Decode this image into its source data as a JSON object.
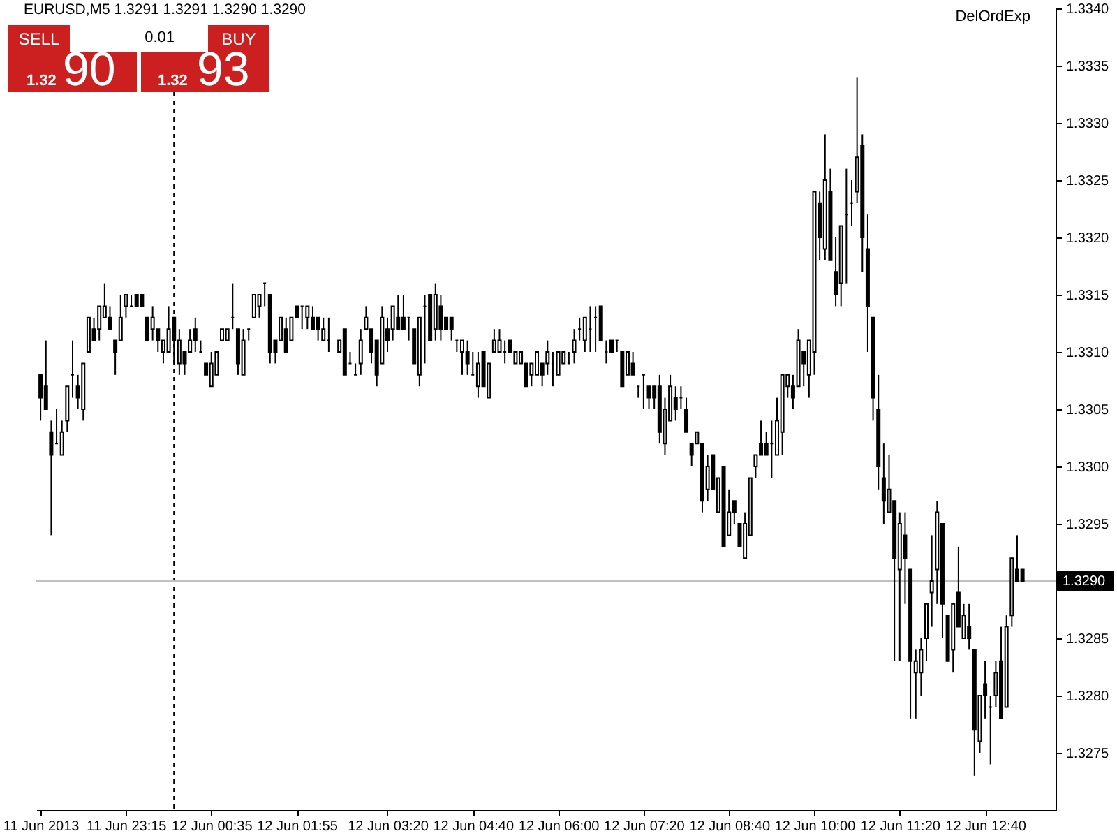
{
  "chart_data": {
    "type": "candlestick",
    "title": "EURUSD,M5  1.3291 1.3291 1.3290 1.3290",
    "color": "#000000",
    "x": [
      "2013-06-11T21:55",
      "2013-06-11T22:00",
      "2013-06-11T22:05",
      "2013-06-11T22:10",
      "2013-06-11T22:15",
      "2013-06-11T22:20",
      "2013-06-11T22:25",
      "2013-06-11T22:30",
      "2013-06-11T22:35",
      "2013-06-11T22:40",
      "2013-06-11T22:45",
      "2013-06-11T22:50",
      "2013-06-11T22:55",
      "2013-06-11T23:00",
      "2013-06-11T23:05",
      "2013-06-11T23:10",
      "2013-06-11T23:15",
      "2013-06-11T23:20",
      "2013-06-11T23:25",
      "2013-06-11T23:30",
      "2013-06-11T23:35",
      "2013-06-11T23:40",
      "2013-06-11T23:45",
      "2013-06-11T23:50",
      "2013-06-11T23:55",
      "2013-06-12T00:00",
      "2013-06-12T00:05",
      "2013-06-12T00:10",
      "2013-06-12T00:15",
      "2013-06-12T00:20",
      "2013-06-12T00:25",
      "2013-06-12T00:30",
      "2013-06-12T00:35",
      "2013-06-12T00:40",
      "2013-06-12T00:45",
      "2013-06-12T00:50",
      "2013-06-12T00:55",
      "2013-06-12T01:00",
      "2013-06-12T01:05",
      "2013-06-12T01:10",
      "2013-06-12T01:15",
      "2013-06-12T01:20",
      "2013-06-12T01:25",
      "2013-06-12T01:30",
      "2013-06-12T01:35",
      "2013-06-12T01:40",
      "2013-06-12T01:45",
      "2013-06-12T01:50",
      "2013-06-12T01:55",
      "2013-06-12T02:00",
      "2013-06-12T02:05",
      "2013-06-12T02:10",
      "2013-06-12T02:15",
      "2013-06-12T02:20",
      "2013-06-12T02:25",
      "2013-06-12T02:35",
      "2013-06-12T02:40",
      "2013-06-12T02:45",
      "2013-06-12T02:50",
      "2013-06-12T02:55",
      "2013-06-12T03:00",
      "2013-06-12T03:05",
      "2013-06-12T03:10",
      "2013-06-12T03:15",
      "2013-06-12T03:20",
      "2013-06-12T03:25",
      "2013-06-12T03:30",
      "2013-06-12T03:35",
      "2013-06-12T03:40",
      "2013-06-12T03:45",
      "2013-06-12T03:50",
      "2013-06-12T03:55",
      "2013-06-12T04:00",
      "2013-06-12T04:05",
      "2013-06-12T04:10",
      "2013-06-12T04:15",
      "2013-06-12T04:20",
      "2013-06-12T04:25",
      "2013-06-12T04:30",
      "2013-06-12T04:35",
      "2013-06-12T04:40",
      "2013-06-12T04:45",
      "2013-06-12T04:50",
      "2013-06-12T04:55",
      "2013-06-12T05:00",
      "2013-06-12T05:05",
      "2013-06-12T05:10",
      "2013-06-12T05:15",
      "2013-06-12T05:20",
      "2013-06-12T05:25",
      "2013-06-12T05:30",
      "2013-06-12T05:35",
      "2013-06-12T05:40",
      "2013-06-12T05:45",
      "2013-06-12T05:50",
      "2013-06-12T05:55",
      "2013-06-12T06:00",
      "2013-06-12T06:05",
      "2013-06-12T06:10",
      "2013-06-12T06:15",
      "2013-06-12T06:20",
      "2013-06-12T06:25",
      "2013-06-12T06:30",
      "2013-06-12T06:35",
      "2013-06-12T06:40",
      "2013-06-12T06:45",
      "2013-06-12T06:50",
      "2013-06-12T06:55",
      "2013-06-12T07:00",
      "2013-06-12T07:05",
      "2013-06-12T07:10",
      "2013-06-12T07:15",
      "2013-06-12T07:20",
      "2013-06-12T07:25",
      "2013-06-12T07:30",
      "2013-06-12T07:35",
      "2013-06-12T07:40",
      "2013-06-12T07:45",
      "2013-06-12T07:50",
      "2013-06-12T07:55",
      "2013-06-12T08:00",
      "2013-06-12T08:05",
      "2013-06-12T08:10",
      "2013-06-12T08:15",
      "2013-06-12T08:20",
      "2013-06-12T08:25",
      "2013-06-12T08:30",
      "2013-06-12T08:35",
      "2013-06-12T08:40",
      "2013-06-12T08:45",
      "2013-06-12T08:50",
      "2013-06-12T08:55",
      "2013-06-12T09:00",
      "2013-06-12T09:05",
      "2013-06-12T09:10",
      "2013-06-12T09:15",
      "2013-06-12T09:20",
      "2013-06-12T09:25",
      "2013-06-12T09:30",
      "2013-06-12T09:35",
      "2013-06-12T09:40",
      "2013-06-12T09:45",
      "2013-06-12T09:50",
      "2013-06-12T09:55",
      "2013-06-12T10:00",
      "2013-06-12T10:05",
      "2013-06-12T10:10",
      "2013-06-12T10:15",
      "2013-06-12T10:20",
      "2013-06-12T10:25",
      "2013-06-12T10:30",
      "2013-06-12T10:35",
      "2013-06-12T10:40",
      "2013-06-12T10:45",
      "2013-06-12T10:50",
      "2013-06-12T10:55",
      "2013-06-12T11:00",
      "2013-06-12T11:05",
      "2013-06-12T11:10",
      "2013-06-12T11:15",
      "2013-06-12T11:20",
      "2013-06-12T11:25",
      "2013-06-12T11:30",
      "2013-06-12T11:35",
      "2013-06-12T11:40",
      "2013-06-12T11:45",
      "2013-06-12T11:50",
      "2013-06-12T11:55",
      "2013-06-12T12:00",
      "2013-06-12T12:05",
      "2013-06-12T12:10",
      "2013-06-12T12:15",
      "2013-06-12T12:20",
      "2013-06-12T12:25",
      "2013-06-12T12:30",
      "2013-06-12T12:35",
      "2013-06-12T12:40",
      "2013-06-12T12:45",
      "2013-06-12T12:50",
      "2013-06-12T12:55",
      "2013-06-12T13:00",
      "2013-06-12T13:05",
      "2013-06-12T13:10",
      "2013-06-12T13:15"
    ],
    "ohlc": [
      [
        1.3308,
        1.3308,
        1.3304,
        1.3306
      ],
      [
        1.3307,
        1.3311,
        1.3305,
        1.3305
      ],
      [
        1.3303,
        1.3304,
        1.3294,
        1.3301
      ],
      [
        1.3302,
        1.3305,
        1.3302,
        1.3302
      ],
      [
        1.3301,
        1.3304,
        1.3301,
        1.3303
      ],
      [
        1.3304,
        1.3307,
        1.3303,
        1.3307
      ],
      [
        1.3308,
        1.3311,
        1.3306,
        1.3308
      ],
      [
        1.3307,
        1.3308,
        1.3305,
        1.3306
      ],
      [
        1.3305,
        1.3309,
        1.3304,
        1.3309
      ],
      [
        1.331,
        1.3313,
        1.331,
        1.3313
      ],
      [
        1.3312,
        1.3313,
        1.3311,
        1.3311
      ],
      [
        1.3312,
        1.3314,
        1.3311,
        1.3314
      ],
      [
        1.3313,
        1.3316,
        1.3313,
        1.3314
      ],
      [
        1.3313,
        1.3314,
        1.3312,
        1.3312
      ],
      [
        1.3311,
        1.3311,
        1.3308,
        1.331
      ],
      [
        1.3311,
        1.3315,
        1.3311,
        1.3313
      ],
      [
        1.3314,
        1.3315,
        1.3313,
        1.3315
      ],
      [
        1.3314,
        1.3315,
        1.3314,
        1.3314
      ],
      [
        1.3315,
        1.3315,
        1.3314,
        1.3314
      ],
      [
        1.3315,
        1.3315,
        1.3314,
        1.3314
      ],
      [
        1.3313,
        1.3313,
        1.3311,
        1.3311
      ],
      [
        1.3312,
        1.3314,
        1.3311,
        1.3313
      ],
      [
        1.3312,
        1.3312,
        1.331,
        1.3311
      ],
      [
        1.331,
        1.3311,
        1.3309,
        1.3311
      ],
      [
        1.331,
        1.3314,
        1.331,
        1.3312
      ],
      [
        1.3313,
        1.3313,
        1.3309,
        1.3311
      ],
      [
        1.3309,
        1.3312,
        1.3308,
        1.3311
      ],
      [
        1.331,
        1.331,
        1.3308,
        1.3309
      ],
      [
        1.331,
        1.3312,
        1.331,
        1.3311
      ],
      [
        1.3312,
        1.3313,
        1.331,
        1.3311
      ],
      [
        1.331,
        1.3311,
        1.331,
        1.331
      ],
      [
        1.3309,
        1.3309,
        1.3308,
        1.3308
      ],
      [
        1.3307,
        1.331,
        1.3307,
        1.3309
      ],
      [
        1.3308,
        1.331,
        1.3308,
        1.331
      ],
      [
        1.3311,
        1.3312,
        1.3311,
        1.3312
      ],
      [
        1.3311,
        1.3312,
        1.3311,
        1.3312
      ],
      [
        1.3313,
        1.3316,
        1.3312,
        1.3313
      ],
      [
        1.3312,
        1.3312,
        1.3308,
        1.3309
      ],
      [
        1.3308,
        1.3312,
        1.3308,
        1.3311
      ],
      [
        1.3312,
        1.3312,
        1.3311,
        1.3312
      ],
      [
        1.3313,
        1.3315,
        1.3313,
        1.3315
      ],
      [
        1.3314,
        1.3315,
        1.3313,
        1.3315
      ],
      [
        1.3316,
        1.3316,
        1.3314,
        1.3316
      ],
      [
        1.3315,
        1.3315,
        1.3309,
        1.331
      ],
      [
        1.3311,
        1.3311,
        1.3309,
        1.331
      ],
      [
        1.3311,
        1.3313,
        1.3311,
        1.3313
      ],
      [
        1.3312,
        1.3313,
        1.331,
        1.331
      ],
      [
        1.3311,
        1.3313,
        1.3311,
        1.3313
      ],
      [
        1.3314,
        1.3314,
        1.3313,
        1.3313
      ],
      [
        1.3314,
        1.3314,
        1.3312,
        1.3314
      ],
      [
        1.3313,
        1.3314,
        1.3312,
        1.3314
      ],
      [
        1.3313,
        1.3314,
        1.3312,
        1.3312
      ],
      [
        1.3313,
        1.3313,
        1.3311,
        1.3312
      ],
      [
        1.3311,
        1.3313,
        1.3311,
        1.3312
      ],
      [
        1.3311,
        1.3313,
        1.331,
        1.3311
      ],
      [
        1.331,
        1.3311,
        1.331,
        1.3311
      ],
      [
        1.3312,
        1.3312,
        1.3308,
        1.3308
      ],
      [
        1.3309,
        1.331,
        1.3309,
        1.3309
      ],
      [
        1.3308,
        1.3309,
        1.3308,
        1.3308
      ],
      [
        1.3309,
        1.3312,
        1.3308,
        1.3311
      ],
      [
        1.3312,
        1.3314,
        1.3312,
        1.3313
      ],
      [
        1.3312,
        1.3312,
        1.3309,
        1.331
      ],
      [
        1.3311,
        1.3311,
        1.3307,
        1.3308
      ],
      [
        1.3309,
        1.3314,
        1.3309,
        1.3313
      ],
      [
        1.3312,
        1.3313,
        1.331,
        1.3311
      ],
      [
        1.3312,
        1.3314,
        1.3311,
        1.3314
      ],
      [
        1.3313,
        1.3315,
        1.3312,
        1.3312
      ],
      [
        1.3313,
        1.3315,
        1.3312,
        1.3312
      ],
      [
        1.3313,
        1.3313,
        1.3311,
        1.3313
      ],
      [
        1.3312,
        1.3312,
        1.3309,
        1.3309
      ],
      [
        1.3308,
        1.3313,
        1.3307,
        1.3313
      ],
      [
        1.3314,
        1.3315,
        1.3309,
        1.3314
      ],
      [
        1.3315,
        1.3315,
        1.3311,
        1.3311
      ],
      [
        1.3312,
        1.3316,
        1.3311,
        1.3315
      ],
      [
        1.3314,
        1.3315,
        1.3311,
        1.3312
      ],
      [
        1.3313,
        1.3313,
        1.3312,
        1.3312
      ],
      [
        1.3313,
        1.3313,
        1.3311,
        1.3312
      ],
      [
        1.3311,
        1.3311,
        1.331,
        1.3311
      ],
      [
        1.331,
        1.3311,
        1.3308,
        1.3311
      ],
      [
        1.331,
        1.3311,
        1.3308,
        1.3309
      ],
      [
        1.3308,
        1.331,
        1.3308,
        1.3308
      ],
      [
        1.3307,
        1.331,
        1.3306,
        1.3309
      ],
      [
        1.331,
        1.331,
        1.3307,
        1.3307
      ],
      [
        1.3306,
        1.3309,
        1.3306,
        1.3309
      ],
      [
        1.331,
        1.3312,
        1.331,
        1.3311
      ],
      [
        1.331,
        1.3312,
        1.331,
        1.3311
      ],
      [
        1.331,
        1.3311,
        1.3309,
        1.331
      ],
      [
        1.3311,
        1.3311,
        1.331,
        1.331
      ],
      [
        1.3309,
        1.331,
        1.3309,
        1.331
      ],
      [
        1.3309,
        1.331,
        1.3309,
        1.331
      ],
      [
        1.3309,
        1.3309,
        1.3307,
        1.3307
      ],
      [
        1.3308,
        1.3309,
        1.3307,
        1.3309
      ],
      [
        1.3308,
        1.331,
        1.3308,
        1.331
      ],
      [
        1.3309,
        1.3309,
        1.3307,
        1.3308
      ],
      [
        1.3309,
        1.3311,
        1.3308,
        1.331
      ],
      [
        1.3309,
        1.331,
        1.3307,
        1.3309
      ],
      [
        1.3308,
        1.331,
        1.3308,
        1.331
      ],
      [
        1.3309,
        1.331,
        1.3309,
        1.331
      ],
      [
        1.3309,
        1.331,
        1.3309,
        1.3309
      ],
      [
        1.331,
        1.3312,
        1.3309,
        1.3311
      ],
      [
        1.3312,
        1.3313,
        1.3311,
        1.3312
      ],
      [
        1.3311,
        1.3313,
        1.331,
        1.3313
      ],
      [
        1.3312,
        1.3314,
        1.331,
        1.3312
      ],
      [
        1.3313,
        1.3314,
        1.331,
        1.3313
      ],
      [
        1.3314,
        1.3314,
        1.3311,
        1.3311
      ],
      [
        1.331,
        1.3311,
        1.3309,
        1.331
      ],
      [
        1.3311,
        1.3311,
        1.331,
        1.331
      ],
      [
        1.3311,
        1.3311,
        1.331,
        1.3311
      ],
      [
        1.331,
        1.331,
        1.3307,
        1.3307
      ],
      [
        1.3308,
        1.331,
        1.3308,
        1.331
      ],
      [
        1.3309,
        1.331,
        1.3308,
        1.3308
      ],
      [
        1.3307,
        1.3307,
        1.3306,
        1.3307
      ],
      [
        1.3308,
        1.3308,
        1.3305,
        1.3308
      ],
      [
        1.3307,
        1.3307,
        1.3305,
        1.3306
      ],
      [
        1.3307,
        1.3307,
        1.3305,
        1.3306
      ],
      [
        1.3307,
        1.3308,
        1.3302,
        1.3303
      ],
      [
        1.3302,
        1.3306,
        1.3301,
        1.3305
      ],
      [
        1.3304,
        1.3308,
        1.3304,
        1.3307
      ],
      [
        1.3306,
        1.3307,
        1.3304,
        1.3305
      ],
      [
        1.3306,
        1.3307,
        1.3305,
        1.3306
      ],
      [
        1.3305,
        1.3306,
        1.3303,
        1.3303
      ],
      [
        1.3302,
        1.3302,
        1.33,
        1.3301
      ],
      [
        1.3302,
        1.3303,
        1.3302,
        1.3303
      ],
      [
        1.3302,
        1.3302,
        1.3296,
        1.3297
      ],
      [
        1.3298,
        1.3301,
        1.3297,
        1.33
      ],
      [
        1.3301,
        1.3301,
        1.3298,
        1.3298
      ],
      [
        1.3296,
        1.3299,
        1.3296,
        1.3299
      ],
      [
        1.33,
        1.33,
        1.3293,
        1.3293
      ],
      [
        1.3294,
        1.3298,
        1.3294,
        1.3296
      ],
      [
        1.3297,
        1.3297,
        1.3295,
        1.3296
      ],
      [
        1.3295,
        1.3295,
        1.3293,
        1.3293
      ],
      [
        1.3292,
        1.3296,
        1.3292,
        1.3295
      ],
      [
        1.3294,
        1.3299,
        1.3294,
        1.3299
      ],
      [
        1.33,
        1.3301,
        1.3299,
        1.3301
      ],
      [
        1.3302,
        1.3304,
        1.3301,
        1.3301
      ],
      [
        1.3302,
        1.3303,
        1.3301,
        1.3301
      ],
      [
        1.3302,
        1.3304,
        1.3299,
        1.3302
      ],
      [
        1.3301,
        1.3306,
        1.3301,
        1.3304
      ],
      [
        1.3303,
        1.3308,
        1.3301,
        1.3308
      ],
      [
        1.3307,
        1.3308,
        1.3306,
        1.3308
      ],
      [
        1.3307,
        1.3308,
        1.3305,
        1.3306
      ],
      [
        1.3307,
        1.3312,
        1.3307,
        1.3311
      ],
      [
        1.331,
        1.331,
        1.3307,
        1.3309
      ],
      [
        1.3308,
        1.3311,
        1.3306,
        1.3311
      ],
      [
        1.331,
        1.3324,
        1.3308,
        1.3324
      ],
      [
        1.3323,
        1.3324,
        1.3318,
        1.332
      ],
      [
        1.3319,
        1.3329,
        1.3318,
        1.3325
      ],
      [
        1.3324,
        1.3326,
        1.3318,
        1.3318
      ],
      [
        1.3317,
        1.332,
        1.3314,
        1.3315
      ],
      [
        1.3316,
        1.3321,
        1.3314,
        1.3321
      ],
      [
        1.3322,
        1.3326,
        1.3316,
        1.3322
      ],
      [
        1.3323,
        1.3325,
        1.3321,
        1.3323
      ],
      [
        1.3324,
        1.3334,
        1.3323,
        1.3327
      ],
      [
        1.3328,
        1.3329,
        1.3317,
        1.332
      ],
      [
        1.3319,
        1.3322,
        1.331,
        1.3314
      ],
      [
        1.3313,
        1.3313,
        1.3304,
        1.3306
      ],
      [
        1.3305,
        1.3308,
        1.3298,
        1.33
      ],
      [
        1.3299,
        1.3302,
        1.3295,
        1.3297
      ],
      [
        1.3296,
        1.3301,
        1.3296,
        1.3298
      ],
      [
        1.3297,
        1.3297,
        1.3283,
        1.3292
      ],
      [
        1.3291,
        1.3296,
        1.3283,
        1.3295
      ],
      [
        1.3294,
        1.3296,
        1.3288,
        1.3292
      ],
      [
        1.3291,
        1.3291,
        1.3278,
        1.3283
      ],
      [
        1.3282,
        1.3284,
        1.3278,
        1.3283
      ],
      [
        1.3282,
        1.3285,
        1.328,
        1.3284
      ],
      [
        1.3285,
        1.3288,
        1.3283,
        1.3288
      ],
      [
        1.3289,
        1.3294,
        1.3286,
        1.329
      ],
      [
        1.3291,
        1.3297,
        1.3288,
        1.3296
      ],
      [
        1.3295,
        1.3295,
        1.3285,
        1.3288
      ],
      [
        1.3287,
        1.3287,
        1.3283,
        1.3283
      ],
      [
        1.3284,
        1.3288,
        1.3282,
        1.3288
      ],
      [
        1.3289,
        1.3293,
        1.3286,
        1.3286
      ],
      [
        1.3285,
        1.3288,
        1.3285,
        1.3287
      ],
      [
        1.3286,
        1.3288,
        1.3284,
        1.3285
      ],
      [
        1.3284,
        1.3284,
        1.3273,
        1.3277
      ],
      [
        1.3276,
        1.328,
        1.3275,
        1.328
      ],
      [
        1.3281,
        1.3283,
        1.3278,
        1.328
      ],
      [
        1.3279,
        1.328,
        1.3274,
        1.3279
      ],
      [
        1.328,
        1.3283,
        1.3279,
        1.3282
      ],
      [
        1.3283,
        1.3286,
        1.3278,
        1.3278
      ],
      [
        1.3279,
        1.3287,
        1.3279,
        1.3286
      ],
      [
        1.3287,
        1.3292,
        1.3286,
        1.3292
      ],
      [
        1.3291,
        1.3294,
        1.329,
        1.329
      ],
      [
        1.3291,
        1.3291,
        1.329,
        1.329
      ]
    ],
    "xlim": [
      "2013-06-11T21:51",
      "2013-06-12T13:46"
    ],
    "xticks": [
      {
        "value": "2013-06-11T21:55",
        "label": "11 Jun 2013"
      },
      {
        "value": "2013-06-11T23:15",
        "label": "11 Jun 23:15"
      },
      {
        "value": "2013-06-12T00:35",
        "label": "12 Jun 00:35"
      },
      {
        "value": "2013-06-12T01:55",
        "label": "12 Jun 01:55"
      },
      {
        "value": "2013-06-12T03:20",
        "label": "12 Jun 03:20"
      },
      {
        "value": "2013-06-12T04:40",
        "label": "12 Jun 04:40"
      },
      {
        "value": "2013-06-12T06:00",
        "label": "12 Jun 06:00"
      },
      {
        "value": "2013-06-12T07:20",
        "label": "12 Jun 07:20"
      },
      {
        "value": "2013-06-12T08:40",
        "label": "12 Jun 08:40"
      },
      {
        "value": "2013-06-12T10:00",
        "label": "12 Jun 10:00"
      },
      {
        "value": "2013-06-12T11:20",
        "label": "12 Jun 11:20"
      },
      {
        "value": "2013-06-12T12:40",
        "label": "12 Jun 12:40"
      }
    ],
    "ylim": [
      1.327,
      1.334
    ],
    "yticks": [
      1.3275,
      {
        "value": 1.328,
        "label": "1.3280"
      },
      1.3285,
      1.3295,
      {
        "value": 1.33,
        "label": "1.3300"
      },
      1.3305,
      {
        "value": 1.331,
        "label": "1.3310"
      },
      1.3315,
      {
        "value": 1.332,
        "label": "1.3320"
      },
      1.3325,
      {
        "value": 1.333,
        "label": "1.3330"
      },
      1.3335,
      {
        "value": 1.334,
        "label": "1.3340"
      }
    ],
    "ref_lines": [
      {
        "axis": "x",
        "value": "2013-06-12T00:00",
        "color": "#000000",
        "line_style": "dashed"
      },
      {
        "axis": "y",
        "value": 1.329,
        "label": "1.3290",
        "color": "#c0c0c0"
      }
    ],
    "annotations": [
      "SELL",
      "BUY",
      "0.01",
      "1.32",
      "90",
      "1.32",
      "93",
      "DelOrdExp"
    ]
  }
}
